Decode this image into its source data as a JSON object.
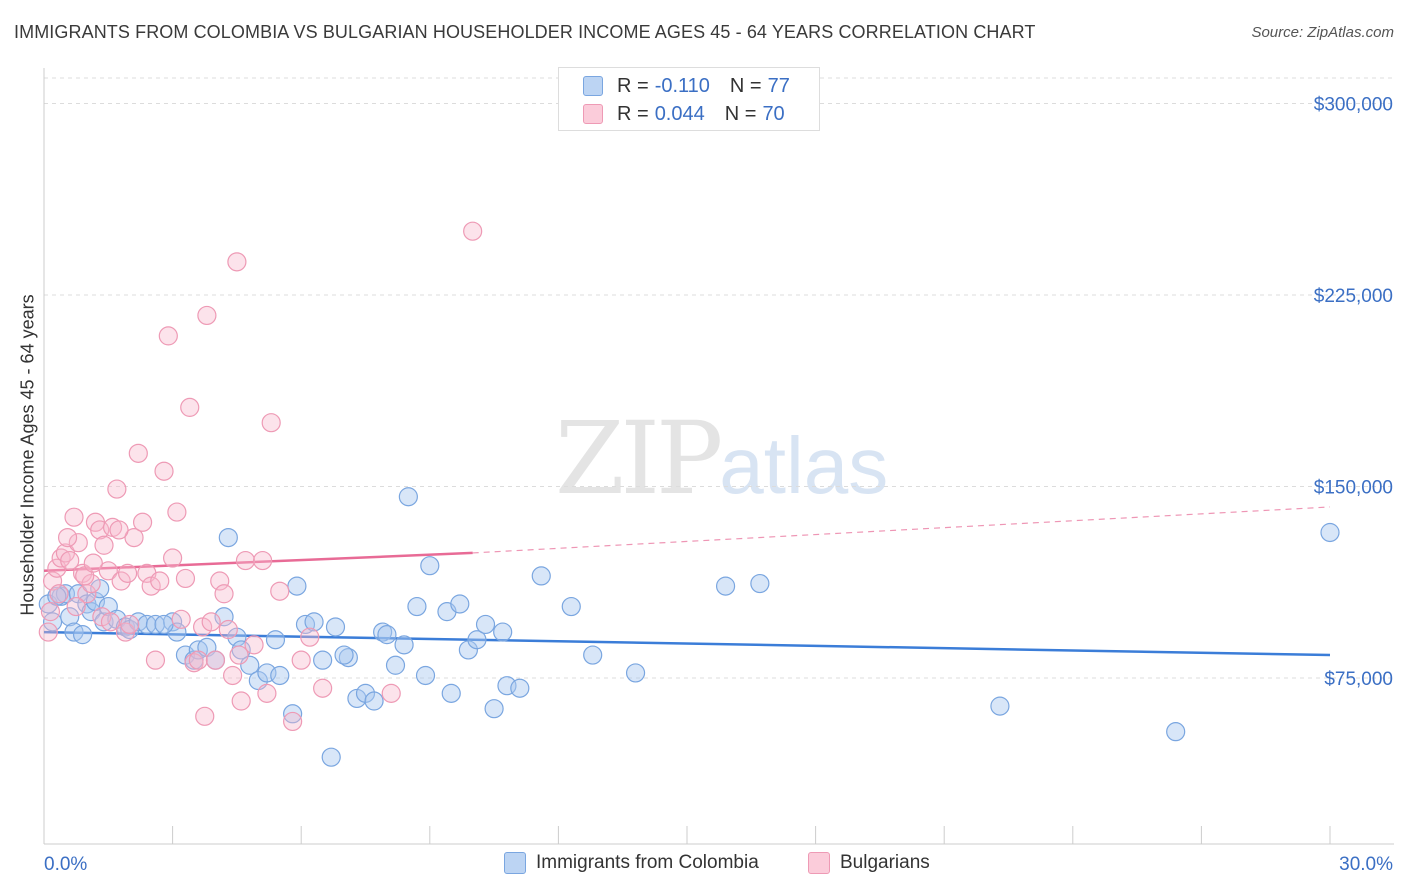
{
  "title": "IMMIGRANTS FROM COLOMBIA VS BULGARIAN HOUSEHOLDER INCOME AGES 45 - 64 YEARS CORRELATION CHART",
  "source": "Source: ZipAtlas.com",
  "watermark": {
    "zip": "ZIP",
    "atlas": "atlas"
  },
  "legend": {
    "rows": [
      {
        "r_label": "R =",
        "r_value": "-0.110",
        "n_label": "N =",
        "n_value": "77",
        "color": "#a9c7ef"
      },
      {
        "r_label": "R =",
        "r_value": "0.044",
        "n_label": "N =",
        "n_value": "70",
        "color": "#f7b9cc"
      }
    ]
  },
  "bottom_legend": {
    "series1": "Immigrants from Colombia",
    "series2": "Bulgarians"
  },
  "colors": {
    "blue": "#3b7dd8",
    "blue_fill": "#a9c7ef",
    "pink": "#e86b96",
    "pink_fill": "#f7b9cc",
    "axis_text": "#3b6fc4"
  },
  "chart_data": {
    "type": "scatter",
    "title": "IMMIGRANTS FROM COLOMBIA VS BULGARIAN HOUSEHOLDER INCOME AGES 45 - 64 YEARS CORRELATION CHART",
    "xlabel": "",
    "ylabel": "Householder Income Ages 45 - 64 years",
    "xlim": [
      0,
      30
    ],
    "ylim": [
      10000,
      310000
    ],
    "x_tick_labels": [
      "0.0%",
      "30.0%"
    ],
    "y_ticks": [
      75000,
      150000,
      225000,
      300000
    ],
    "y_tick_labels": [
      "$75,000",
      "$150,000",
      "$225,000",
      "$300,000"
    ],
    "grid": true,
    "legend_placement": "top-center",
    "series": [
      {
        "name": "Immigrants from Colombia",
        "color": "#3b7dd8",
        "trend": {
          "x": [
            0,
            30
          ],
          "y": [
            93000,
            84000
          ]
        },
        "points": [
          [
            0.1,
            104000
          ],
          [
            0.2,
            97000
          ],
          [
            0.4,
            107000
          ],
          [
            0.5,
            108000
          ],
          [
            0.6,
            99000
          ],
          [
            0.7,
            93000
          ],
          [
            0.8,
            108000
          ],
          [
            0.9,
            92000
          ],
          [
            1.0,
            104000
          ],
          [
            1.1,
            101000
          ],
          [
            1.2,
            105000
          ],
          [
            1.4,
            97000
          ],
          [
            1.5,
            103000
          ],
          [
            1.7,
            98000
          ],
          [
            1.9,
            95000
          ],
          [
            2.0,
            94000
          ],
          [
            2.2,
            97000
          ],
          [
            2.4,
            96000
          ],
          [
            2.6,
            96000
          ],
          [
            3.0,
            97000
          ],
          [
            3.1,
            93000
          ],
          [
            3.3,
            84000
          ],
          [
            3.5,
            82000
          ],
          [
            3.6,
            86000
          ],
          [
            3.8,
            87000
          ],
          [
            4.0,
            82000
          ],
          [
            4.2,
            99000
          ],
          [
            4.3,
            130000
          ],
          [
            4.5,
            91000
          ],
          [
            4.6,
            86000
          ],
          [
            4.8,
            80000
          ],
          [
            5.0,
            74000
          ],
          [
            5.2,
            77000
          ],
          [
            5.4,
            90000
          ],
          [
            5.5,
            76000
          ],
          [
            5.8,
            61000
          ],
          [
            5.9,
            111000
          ],
          [
            6.1,
            96000
          ],
          [
            6.3,
            97000
          ],
          [
            6.5,
            82000
          ],
          [
            6.7,
            44000
          ],
          [
            6.8,
            95000
          ],
          [
            7.1,
            83000
          ],
          [
            7.3,
            67000
          ],
          [
            7.5,
            69000
          ],
          [
            7.7,
            66000
          ],
          [
            7.9,
            93000
          ],
          [
            8.0,
            92000
          ],
          [
            8.2,
            80000
          ],
          [
            8.4,
            88000
          ],
          [
            8.5,
            146000
          ],
          [
            8.7,
            103000
          ],
          [
            8.9,
            76000
          ],
          [
            9.0,
            119000
          ],
          [
            9.4,
            101000
          ],
          [
            9.5,
            69000
          ],
          [
            9.7,
            104000
          ],
          [
            9.9,
            86000
          ],
          [
            10.1,
            90000
          ],
          [
            10.3,
            96000
          ],
          [
            10.5,
            63000
          ],
          [
            10.7,
            93000
          ],
          [
            10.8,
            72000
          ],
          [
            11.1,
            71000
          ],
          [
            11.6,
            115000
          ],
          [
            12.3,
            103000
          ],
          [
            12.8,
            84000
          ],
          [
            13.8,
            77000
          ],
          [
            15.9,
            111000
          ],
          [
            16.7,
            112000
          ],
          [
            22.3,
            64000
          ],
          [
            26.4,
            54000
          ],
          [
            30.0,
            132000
          ],
          [
            0.3,
            107000
          ],
          [
            1.3,
            110000
          ],
          [
            2.8,
            96000
          ],
          [
            7.0,
            84000
          ]
        ]
      },
      {
        "name": "Bulgarians",
        "color": "#e86b96",
        "trend": {
          "x": [
            0,
            10
          ],
          "y": [
            117000,
            124000
          ],
          "dashed_to": {
            "x": 30,
            "y": 142000
          }
        },
        "points": [
          [
            0.1,
            93000
          ],
          [
            0.2,
            113000
          ],
          [
            0.3,
            118000
          ],
          [
            0.4,
            122000
          ],
          [
            0.5,
            124000
          ],
          [
            0.6,
            121000
          ],
          [
            0.7,
            138000
          ],
          [
            0.8,
            128000
          ],
          [
            0.9,
            116000
          ],
          [
            1.0,
            108000
          ],
          [
            1.1,
            112000
          ],
          [
            1.2,
            136000
          ],
          [
            1.3,
            133000
          ],
          [
            1.4,
            127000
          ],
          [
            1.5,
            117000
          ],
          [
            1.6,
            134000
          ],
          [
            1.7,
            149000
          ],
          [
            1.8,
            113000
          ],
          [
            1.9,
            93000
          ],
          [
            2.0,
            96000
          ],
          [
            2.1,
            130000
          ],
          [
            2.2,
            163000
          ],
          [
            2.3,
            136000
          ],
          [
            2.4,
            116000
          ],
          [
            2.5,
            111000
          ],
          [
            2.6,
            82000
          ],
          [
            2.7,
            113000
          ],
          [
            2.8,
            156000
          ],
          [
            2.9,
            209000
          ],
          [
            3.0,
            122000
          ],
          [
            3.1,
            140000
          ],
          [
            3.2,
            98000
          ],
          [
            3.3,
            114000
          ],
          [
            3.4,
            181000
          ],
          [
            3.5,
            81000
          ],
          [
            3.6,
            82000
          ],
          [
            3.7,
            95000
          ],
          [
            3.8,
            217000
          ],
          [
            3.9,
            97000
          ],
          [
            4.0,
            82000
          ],
          [
            4.1,
            113000
          ],
          [
            4.2,
            108000
          ],
          [
            4.3,
            94000
          ],
          [
            4.4,
            76000
          ],
          [
            4.5,
            238000
          ],
          [
            4.6,
            66000
          ],
          [
            4.7,
            121000
          ],
          [
            4.9,
            88000
          ],
          [
            5.1,
            121000
          ],
          [
            5.3,
            175000
          ],
          [
            5.5,
            109000
          ],
          [
            5.8,
            58000
          ],
          [
            6.0,
            82000
          ],
          [
            6.2,
            91000
          ],
          [
            6.5,
            71000
          ],
          [
            0.15,
            101000
          ],
          [
            0.35,
            108000
          ],
          [
            0.55,
            130000
          ],
          [
            0.75,
            103000
          ],
          [
            0.95,
            115000
          ],
          [
            1.15,
            120000
          ],
          [
            1.35,
            99000
          ],
          [
            1.55,
            97000
          ],
          [
            1.75,
            133000
          ],
          [
            1.95,
            116000
          ],
          [
            3.75,
            60000
          ],
          [
            8.1,
            69000
          ],
          [
            10.0,
            250000
          ],
          [
            4.55,
            84000
          ],
          [
            5.2,
            69000
          ]
        ]
      }
    ]
  }
}
